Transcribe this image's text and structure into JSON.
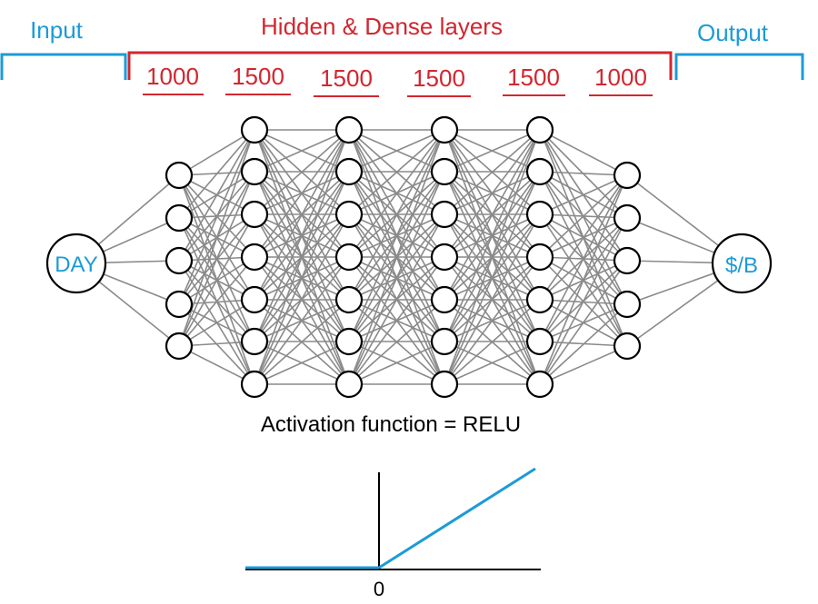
{
  "sections": {
    "input_label": "Input",
    "hidden_label": "Hidden & Dense layers",
    "output_label": "Output"
  },
  "hidden_layer_counts": [
    "1000",
    "1500",
    "1500",
    "1500",
    "1500",
    "1000"
  ],
  "input_node": "DAY",
  "output_node": "$/B",
  "caption": "Activation function = RELU",
  "relu_axis_label": "0",
  "colors": {
    "blue": "#1b9bd7",
    "red": "#d2262f",
    "edge": "#8a8a8a",
    "node_stroke": "#000000"
  },
  "network": {
    "layer_node_counts": [
      1,
      5,
      7,
      7,
      7,
      7,
      5,
      1
    ]
  }
}
